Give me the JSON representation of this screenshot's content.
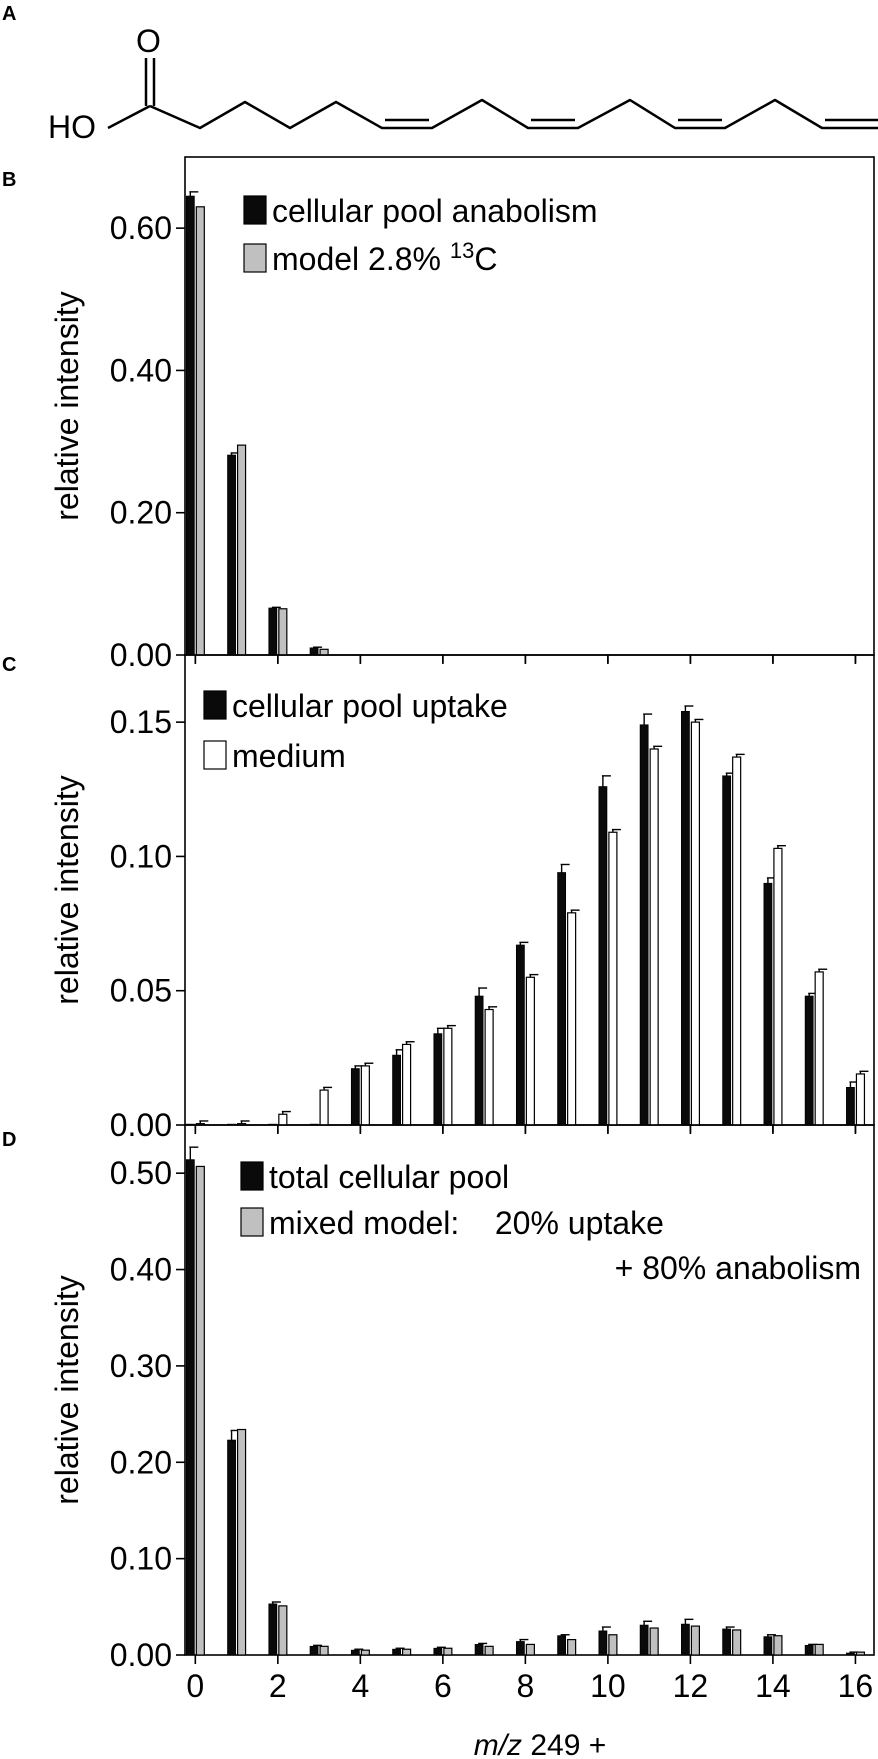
{
  "panel_labels": {
    "a": "A",
    "b": "B",
    "c": "C",
    "d": "D"
  },
  "molecule": {
    "carbonyl_o": "O",
    "hydroxyl": "HO"
  },
  "axis_ylabel": "relative intensity",
  "x_axis": {
    "label_italic": "m/z",
    "label_rest": " 249 +"
  },
  "chart_data": [
    {
      "panel": "B",
      "type": "bar",
      "x": [
        0,
        1,
        2,
        3
      ],
      "xlim": [
        -0.25,
        16.45
      ],
      "xticks": [
        0,
        2,
        4,
        6,
        8,
        10,
        12,
        14,
        16
      ],
      "ylabel": "relative intensity",
      "ylim": [
        0,
        0.7
      ],
      "yticks": [
        0.0,
        0.2,
        0.4,
        0.6
      ],
      "ytick_labels": [
        "0.00",
        "0.20",
        "0.40",
        "0.60"
      ],
      "legend_position": "top-right",
      "series": [
        {
          "name": "cellular pool anabolism",
          "color": "#0a0a0a",
          "values": [
            0.645,
            0.281,
            0.066,
            0.01
          ],
          "errors": [
            0.006,
            0.003,
            0.001,
            0.001
          ]
        },
        {
          "name": "model 2.8% ",
          "name_sup": "13",
          "name_tail": "C",
          "color": "#c0c0c0",
          "values": [
            0.63,
            0.295,
            0.065,
            0.008
          ],
          "errors": [
            0,
            0,
            0,
            0
          ]
        }
      ]
    },
    {
      "panel": "C",
      "type": "bar",
      "x": [
        0,
        1,
        2,
        3,
        4,
        5,
        6,
        7,
        8,
        9,
        10,
        11,
        12,
        13,
        14,
        15,
        16
      ],
      "xlim": [
        -0.25,
        16.45
      ],
      "xticks": [
        0,
        2,
        4,
        6,
        8,
        10,
        12,
        14,
        16
      ],
      "ylabel": "relative intensity",
      "ylim": [
        0,
        0.175
      ],
      "yticks": [
        0.0,
        0.05,
        0.1,
        0.15
      ],
      "ytick_labels": [
        "0.00",
        "0.05",
        "0.10",
        "0.15"
      ],
      "legend_position": "top-right",
      "series": [
        {
          "name": "cellular pool uptake",
          "color": "#0a0a0a",
          "values": [
            0.0,
            0.0,
            0.0,
            0.0,
            0.021,
            0.026,
            0.034,
            0.048,
            0.067,
            0.094,
            0.126,
            0.149,
            0.154,
            0.13,
            0.09,
            0.048,
            0.014
          ],
          "errors": [
            0,
            0,
            0,
            0,
            0.001,
            0.002,
            0.002,
            0.003,
            0.001,
            0.003,
            0.004,
            0.004,
            0.002,
            0.001,
            0.002,
            0.001,
            0.002
          ]
        },
        {
          "name": "medium",
          "color": "#ffffff",
          "values": [
            0.0005,
            0.0005,
            0.004,
            0.013,
            0.022,
            0.03,
            0.036,
            0.043,
            0.055,
            0.079,
            0.109,
            0.14,
            0.15,
            0.137,
            0.103,
            0.057,
            0.019
          ],
          "errors": [
            0.001,
            0.001,
            0.001,
            0.001,
            0.001,
            0.001,
            0.001,
            0.001,
            0.001,
            0.001,
            0.001,
            0.001,
            0.001,
            0.001,
            0.001,
            0.001,
            0.001
          ]
        }
      ]
    },
    {
      "panel": "D",
      "type": "bar",
      "x": [
        0,
        1,
        2,
        3,
        4,
        5,
        6,
        7,
        8,
        9,
        10,
        11,
        12,
        13,
        14,
        15,
        16
      ],
      "xlim": [
        -0.25,
        16.45
      ],
      "xticks": [
        0,
        2,
        4,
        6,
        8,
        10,
        12,
        14,
        16
      ],
      "xlabel": "m/z 249 +",
      "ylabel": "relative intensity",
      "ylim": [
        0,
        0.55
      ],
      "yticks": [
        0.0,
        0.1,
        0.2,
        0.3,
        0.4,
        0.5
      ],
      "ytick_labels": [
        "0.00",
        "0.10",
        "0.20",
        "0.30",
        "0.40",
        "0.50"
      ],
      "legend_position": "top-right",
      "series": [
        {
          "name": "total cellular pool",
          "color": "#0a0a0a",
          "values": [
            0.514,
            0.223,
            0.053,
            0.009,
            0.005,
            0.006,
            0.007,
            0.011,
            0.014,
            0.02,
            0.025,
            0.031,
            0.032,
            0.027,
            0.019,
            0.01,
            0.002
          ],
          "errors": [
            0.013,
            0.01,
            0.002,
            0.001,
            0.001,
            0.001,
            0.001,
            0.001,
            0.002,
            0.001,
            0.004,
            0.004,
            0.005,
            0.002,
            0.002,
            0.001,
            0.001
          ]
        },
        {
          "name": "mixed model:    20% uptake",
          "name_line2": "+ 80% anabolism",
          "color": "#c0c0c0",
          "values": [
            0.507,
            0.234,
            0.051,
            0.009,
            0.005,
            0.006,
            0.007,
            0.009,
            0.011,
            0.016,
            0.021,
            0.028,
            0.03,
            0.026,
            0.02,
            0.011,
            0.003
          ],
          "errors": [
            0,
            0,
            0,
            0,
            0,
            0,
            0,
            0,
            0,
            0,
            0,
            0,
            0,
            0,
            0,
            0,
            0
          ]
        }
      ]
    }
  ]
}
